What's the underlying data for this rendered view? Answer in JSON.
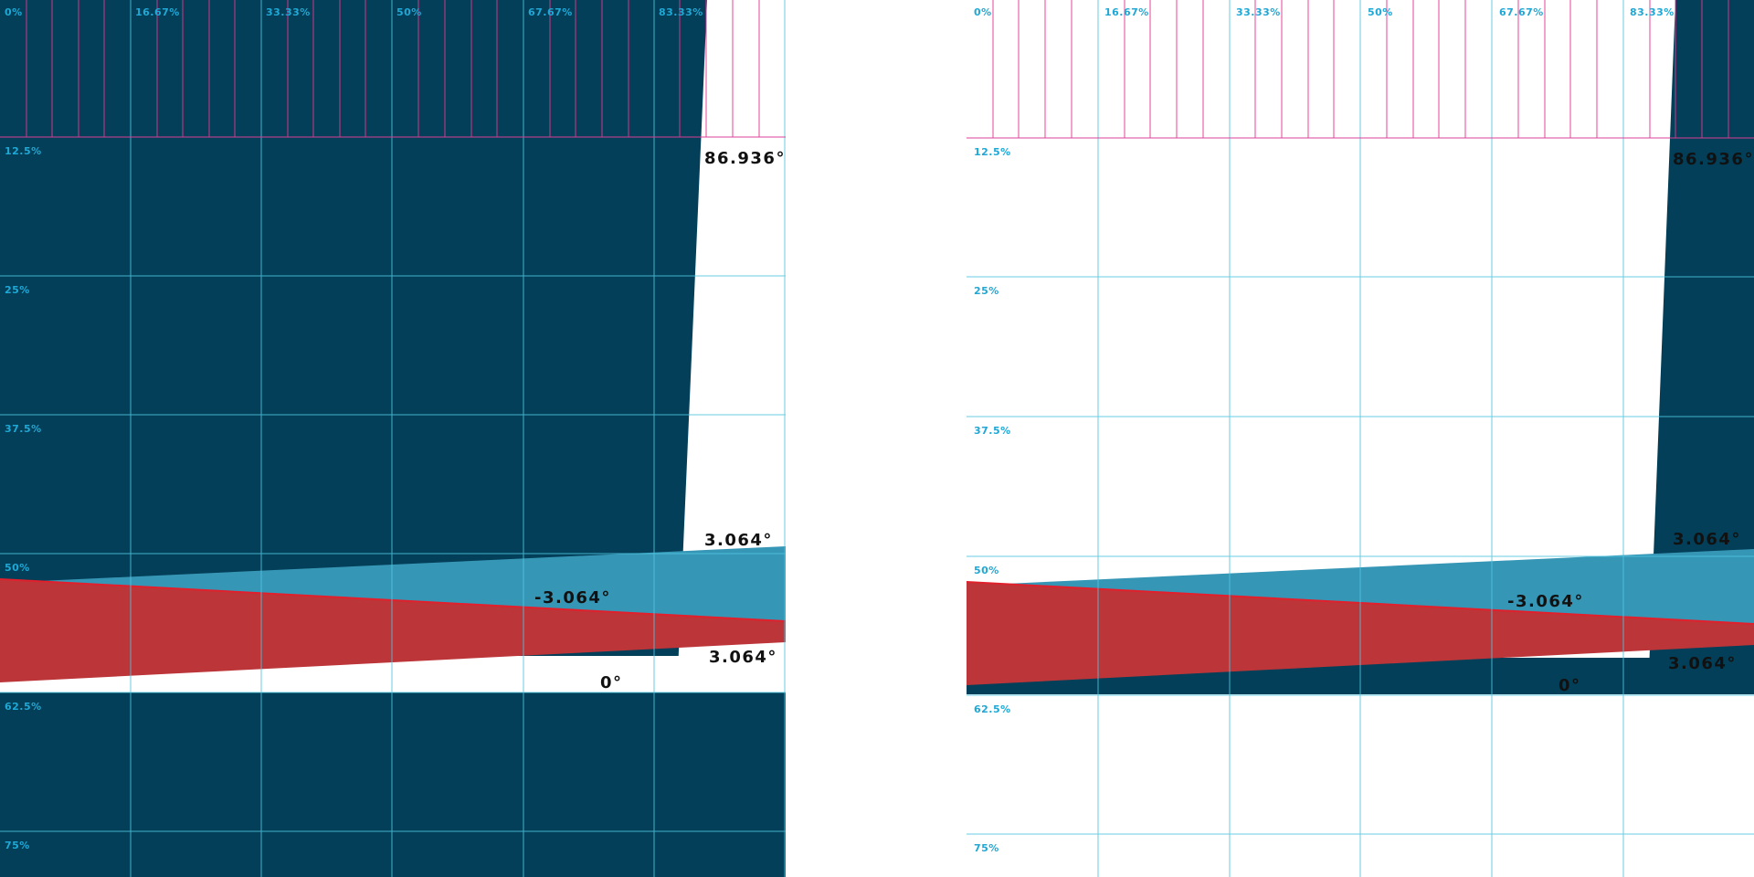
{
  "colors": {
    "navy": "#033f58",
    "teal": "#3696b6",
    "red": "#bc3538",
    "red_edge": "#e0202c",
    "grid_blue": "#4fc6e0",
    "grid_pink": "#e8338f",
    "label_blue": "#1fa8d6",
    "white": "#ffffff"
  },
  "columns": [
    "0%",
    "16.67%",
    "33.33%",
    "50%",
    "67.67%",
    "83.33%"
  ],
  "rows": [
    "12.5%",
    "25%",
    "37.5%",
    "50%",
    "62.5%",
    "75%"
  ],
  "panels": [
    {
      "name": "left",
      "background": "navy",
      "angles": {
        "vertical": "86.936°",
        "top": "3.064°",
        "middle": "-3.064°",
        "bottom": "3.064°",
        "zero": "0°"
      }
    },
    {
      "name": "right",
      "background": "white",
      "angles": {
        "vertical": "86.936°",
        "top": "3.064°",
        "middle": "-3.064°",
        "bottom": "3.064°",
        "zero": "0°"
      }
    }
  ]
}
